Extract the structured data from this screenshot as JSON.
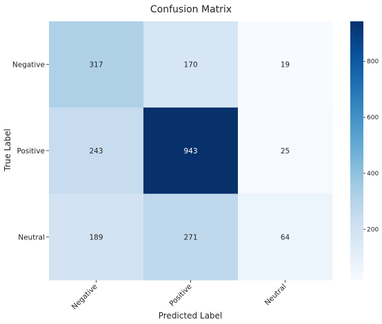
{
  "chart_data": {
    "type": "heatmap",
    "title": "Confusion Matrix",
    "xlabel": "Predicted Label",
    "ylabel": "True Label",
    "x_categories": [
      "Negative",
      "Positive",
      "Neutral"
    ],
    "y_categories": [
      "Negative",
      "Positive",
      "Neutral"
    ],
    "values": [
      [
        317,
        170,
        19
      ],
      [
        243,
        943,
        25
      ],
      [
        189,
        271,
        64
      ]
    ],
    "colormap": "Blues",
    "color_range": [
      19,
      943
    ],
    "colorbar_ticks": [
      200,
      400,
      600,
      800
    ],
    "grid": false
  },
  "colors": {
    "cmap_low": "#f7fbff",
    "cmap_mid": "#6baed6",
    "cmap_high": "#08306b",
    "text_dark": "#262626",
    "text_light": "#ffffff"
  }
}
